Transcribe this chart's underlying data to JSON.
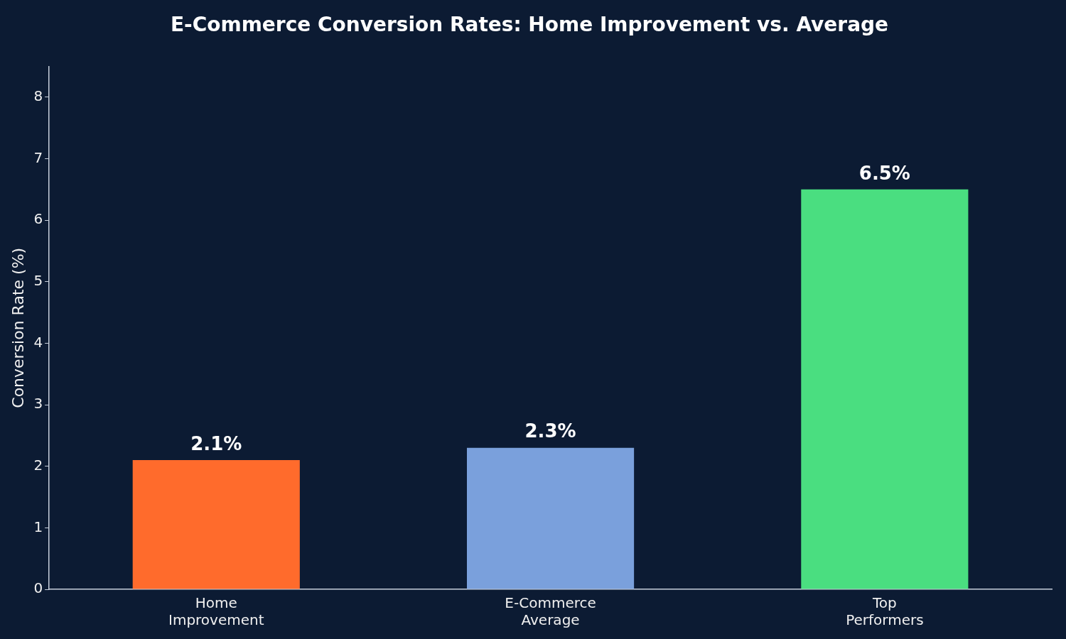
{
  "chart_data": {
    "type": "bar",
    "title": "E-Commerce Conversion Rates: Home Improvement vs. Average",
    "ylabel": "Conversion Rate (%)",
    "categories": [
      "Home Improvement",
      "E-Commerce Average",
      "Top Performers"
    ],
    "values": [
      2.1,
      2.3,
      6.5
    ],
    "colors": [
      "#ff6b2c",
      "#7aa0dc",
      "#4ade80"
    ],
    "value_labels": [
      "2.1%",
      "2.3%",
      "6.5%"
    ],
    "ylim": [
      0,
      8.5
    ],
    "yticks": [
      0,
      1,
      2,
      3,
      4,
      5,
      6,
      7,
      8
    ],
    "grid": false,
    "legend": false
  }
}
